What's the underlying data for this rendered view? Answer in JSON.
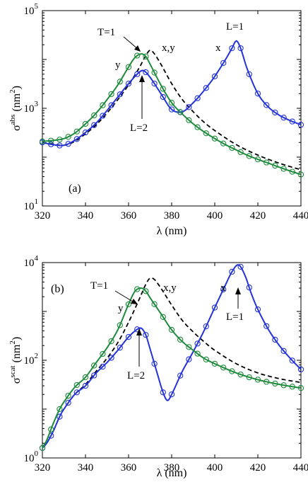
{
  "colors": {
    "x_series": "#2433d9",
    "y_series": "#1e8a3c",
    "xy_series": "#000000"
  },
  "chart_data": [
    {
      "type": "line",
      "panel_label": "(a)",
      "xlabel": "λ (nm)",
      "ylabel_main": "σ",
      "ylabel_sup": "abs",
      "ylabel_unit_open": "(nm",
      "ylabel_unit_sup": "2",
      "ylabel_unit_close": ")",
      "xlim": [
        320,
        440
      ],
      "ylim": [
        10,
        100000
      ],
      "yscale": "log",
      "x_ticks": [
        320,
        340,
        360,
        380,
        400,
        420,
        440
      ],
      "x_tick_labels": [
        "320",
        "340",
        "360",
        "380",
        "400",
        "420",
        "440"
      ],
      "y_ticks": [
        {
          "value": 10,
          "base": "10",
          "exp": "1"
        },
        {
          "value": 1000,
          "base": "10",
          "exp": "3"
        },
        {
          "value": 100000,
          "base": "10",
          "exp": "5"
        }
      ],
      "series": [
        {
          "name": "x",
          "style": "solid-circles",
          "x": [
            320,
            325,
            330,
            335,
            340,
            345,
            350,
            355,
            360,
            365,
            367,
            370,
            375,
            380,
            385,
            390,
            395,
            400,
            405,
            408,
            410,
            412,
            415,
            420,
            425,
            430,
            435,
            440
          ],
          "y": [
            200,
            180,
            175,
            220,
            320,
            500,
            900,
            1700,
            3200,
            5500,
            5900,
            4300,
            2000,
            950,
            850,
            1300,
            2300,
            4500,
            10000,
            17000,
            24000,
            17000,
            6500,
            2000,
            1050,
            720,
            560,
            460
          ]
        },
        {
          "name": "y",
          "style": "solid-circles",
          "x": [
            320,
            325,
            330,
            335,
            340,
            345,
            350,
            355,
            360,
            363,
            366,
            368,
            370,
            375,
            380,
            385,
            390,
            395,
            400,
            405,
            410,
            415,
            420,
            425,
            430,
            435,
            440
          ],
          "y": [
            210,
            220,
            240,
            310,
            480,
            800,
            1500,
            3000,
            7000,
            11000,
            13000,
            11500,
            8000,
            3000,
            1300,
            760,
            480,
            330,
            240,
            180,
            140,
            110,
            90,
            75,
            62,
            52,
            44
          ]
        },
        {
          "name": "x,y",
          "style": "dashed",
          "x": [
            320,
            325,
            330,
            335,
            340,
            345,
            350,
            355,
            360,
            365,
            368,
            370,
            372,
            375,
            380,
            385,
            390,
            395,
            400,
            410,
            420,
            430,
            440
          ],
          "y": [
            200,
            185,
            175,
            210,
            300,
            460,
            800,
            1500,
            3000,
            6800,
            12000,
            15500,
            13000,
            8000,
            3200,
            1500,
            850,
            520,
            350,
            180,
            110,
            75,
            55
          ]
        }
      ],
      "annotations": [
        "T=1",
        "x,y",
        "y",
        "L=2",
        "L=1",
        "x"
      ]
    },
    {
      "type": "line",
      "panel_label": "(b)",
      "xlabel": "λ (nm)",
      "ylabel_main": "σ",
      "ylabel_sup": "scat",
      "ylabel_unit_open": "(nm",
      "ylabel_unit_sup": "2",
      "ylabel_unit_close": ")",
      "xlim": [
        320,
        440
      ],
      "ylim": [
        1,
        10000
      ],
      "yscale": "log",
      "x_ticks": [
        320,
        340,
        360,
        380,
        400,
        420,
        440
      ],
      "x_tick_labels": [
        "320",
        "340",
        "360",
        "380",
        "400",
        "420",
        "440"
      ],
      "y_ticks": [
        {
          "value": 1,
          "base": "10",
          "exp": "0"
        },
        {
          "value": 100,
          "base": "10",
          "exp": "2"
        },
        {
          "value": 10000,
          "base": "10",
          "exp": "4"
        }
      ],
      "series": [
        {
          "name": "x",
          "style": "solid-circles",
          "x": [
            320,
            322,
            325,
            328,
            330,
            335,
            340,
            345,
            350,
            355,
            360,
            364,
            366,
            368,
            370,
            373,
            376,
            378,
            380,
            385,
            390,
            395,
            400,
            405,
            408,
            411,
            414,
            417,
            420,
            425,
            430,
            435,
            440
          ],
          "y": [
            1.6,
            2.0,
            3.5,
            7.0,
            10,
            20,
            30,
            55,
            90,
            160,
            300,
            430,
            450,
            330,
            170,
            60,
            22,
            15,
            20,
            60,
            150,
            400,
            1200,
            3500,
            6500,
            9000,
            5500,
            2300,
            1100,
            420,
            200,
            110,
            65
          ]
        },
        {
          "name": "y",
          "style": "solid-circles",
          "x": [
            320,
            322,
            325,
            328,
            330,
            335,
            340,
            345,
            350,
            355,
            360,
            363,
            366,
            368,
            370,
            375,
            380,
            385,
            390,
            395,
            400,
            410,
            420,
            430,
            440
          ],
          "y": [
            1.6,
            2.3,
            5.0,
            10,
            14,
            28,
            45,
            90,
            180,
            420,
            1400,
            2600,
            3000,
            2600,
            1900,
            900,
            420,
            240,
            160,
            110,
            85,
            55,
            40,
            32,
            27
          ]
        },
        {
          "name": "x,y",
          "style": "dashed",
          "x": [
            320,
            322,
            325,
            328,
            330,
            335,
            340,
            345,
            350,
            355,
            360,
            365,
            368,
            370,
            372,
            375,
            380,
            385,
            390,
            395,
            400,
            410,
            420,
            430,
            440
          ],
          "y": [
            1.6,
            2.0,
            3.5,
            7.0,
            10,
            20,
            32,
            60,
            110,
            230,
            600,
            1800,
            3600,
            4800,
            4500,
            3000,
            1350,
            650,
            380,
            240,
            160,
            85,
            55,
            42,
            35
          ]
        }
      ],
      "annotations": [
        "T=1",
        "x,y",
        "y",
        "L=2",
        "x",
        "L=1"
      ]
    }
  ]
}
